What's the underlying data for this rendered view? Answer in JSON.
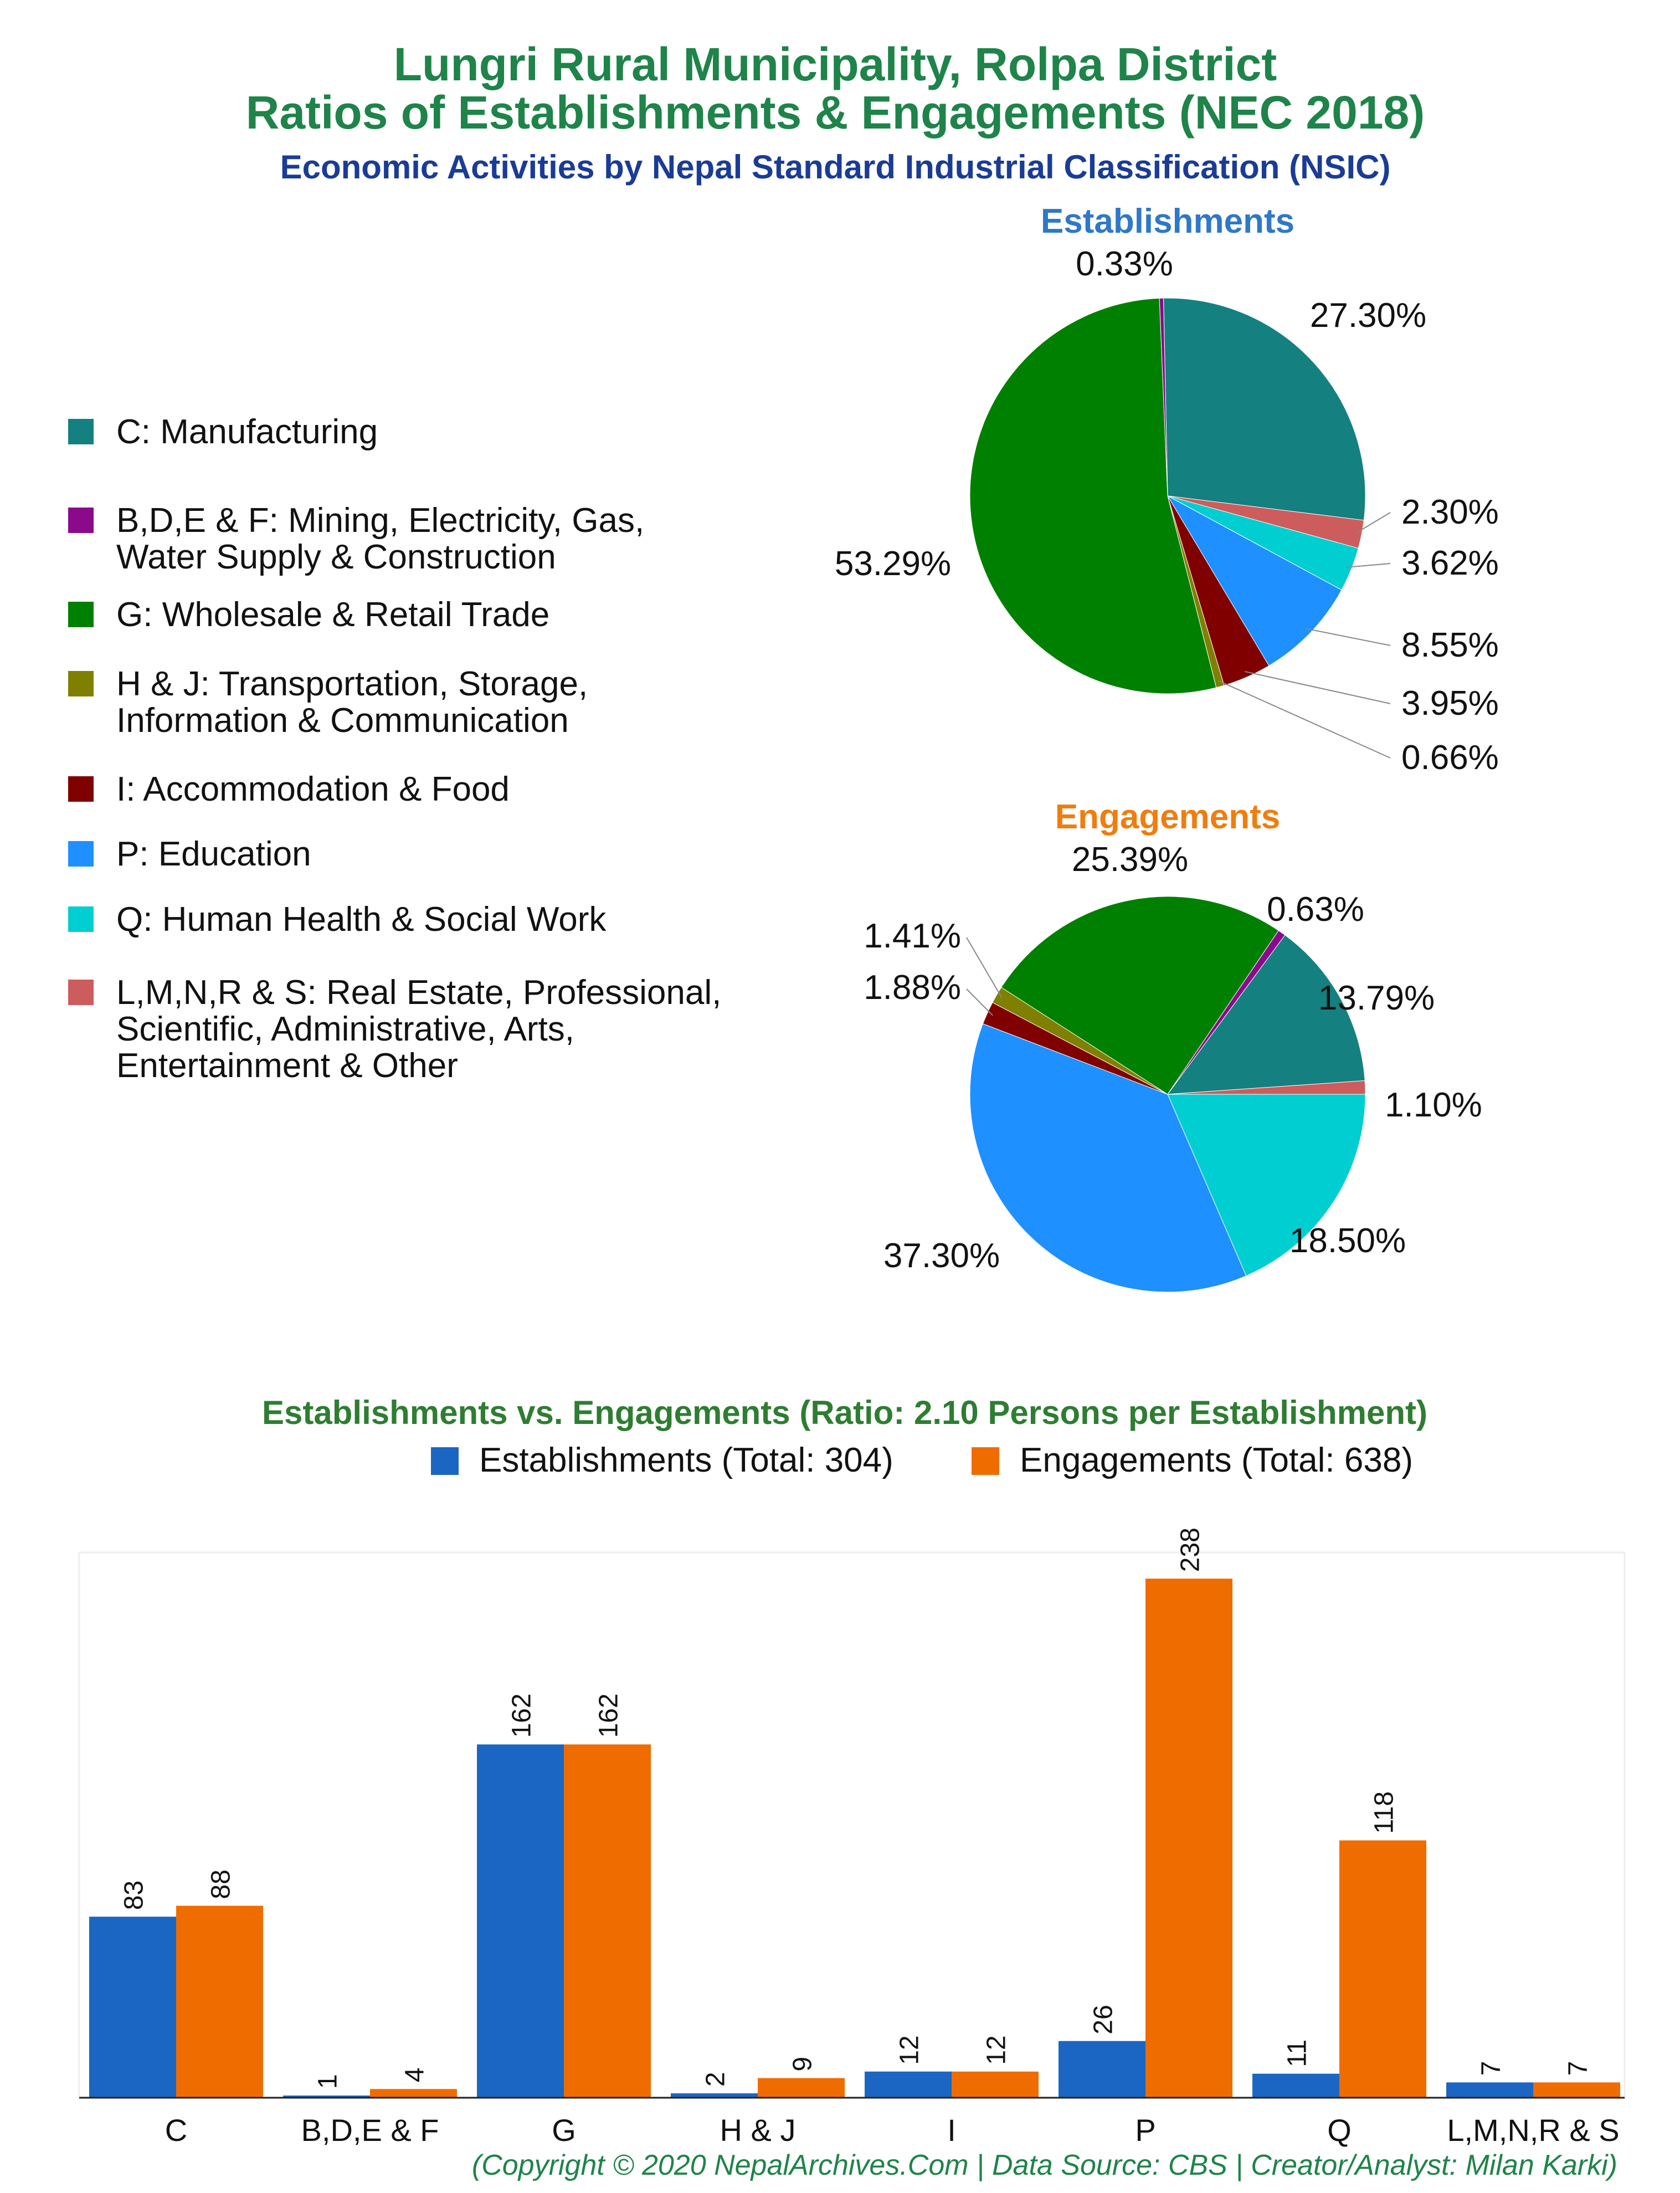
{
  "header": {
    "title_line1": "Lungri Rural Municipality, Rolpa District",
    "title_line2": "Ratios of Establishments & Engagements (NEC 2018)",
    "subtitle": "Economic Activities by Nepal Standard Industrial Classification (NSIC)"
  },
  "colors": {
    "title": "#1e8449",
    "subtitle": "#1a3c96",
    "establishments_title": "#2e78c8",
    "engagements_title": "#ef7d0f",
    "bar_establishments": "#1a66c2",
    "bar_engagements": "#ef6c00",
    "footer": "#1e8449"
  },
  "legend": {
    "items": [
      {
        "code": "C",
        "lines": [
          "C: Manufacturing"
        ],
        "color": "#148080"
      },
      {
        "code": "BDEF",
        "lines": [
          "B,D,E & F: Mining, Electricity, Gas,",
          "Water Supply & Construction"
        ],
        "color": "#8b0a8b"
      },
      {
        "code": "G",
        "lines": [
          "G: Wholesale & Retail Trade"
        ],
        "color": "#008000"
      },
      {
        "code": "HJ",
        "lines": [
          "H & J: Transportation, Storage,",
          "Information & Communication"
        ],
        "color": "#808000"
      },
      {
        "code": "I",
        "lines": [
          "I: Accommodation & Food"
        ],
        "color": "#800000"
      },
      {
        "code": "P",
        "lines": [
          "P: Education"
        ],
        "color": "#1e90ff"
      },
      {
        "code": "Q",
        "lines": [
          "Q: Human Health & Social Work"
        ],
        "color": "#00ced1"
      },
      {
        "code": "LMNRS",
        "lines": [
          "L,M,N,R & S: Real Estate, Professional,",
          "Scientific, Administrative, Arts,",
          "Entertainment & Other"
        ],
        "color": "#cd5c5c"
      }
    ]
  },
  "chart_data": [
    {
      "type": "pie",
      "title": "Establishments",
      "slices": [
        {
          "code": "C",
          "value": 27.3,
          "label": "27.30%"
        },
        {
          "code": "LMNRS",
          "value": 2.3,
          "label": "2.30%"
        },
        {
          "code": "Q",
          "value": 3.62,
          "label": "3.62%"
        },
        {
          "code": "P",
          "value": 8.55,
          "label": "8.55%"
        },
        {
          "code": "I",
          "value": 3.95,
          "label": "3.95%"
        },
        {
          "code": "HJ",
          "value": 0.66,
          "label": "0.66%"
        },
        {
          "code": "G",
          "value": 53.29,
          "label": "53.29%"
        },
        {
          "code": "BDEF",
          "value": 0.33,
          "label": "0.33%"
        }
      ]
    },
    {
      "type": "pie",
      "title": "Engagements",
      "slices": [
        {
          "code": "C",
          "value": 13.79,
          "label": "13.79%"
        },
        {
          "code": "LMNRS",
          "value": 1.1,
          "label": "1.10%"
        },
        {
          "code": "Q",
          "value": 18.5,
          "label": "18.50%"
        },
        {
          "code": "P",
          "value": 37.3,
          "label": "37.30%"
        },
        {
          "code": "I",
          "value": 1.88,
          "label": "1.88%"
        },
        {
          "code": "HJ",
          "value": 1.41,
          "label": "1.41%"
        },
        {
          "code": "G",
          "value": 25.39,
          "label": "25.39%"
        },
        {
          "code": "BDEF",
          "value": 0.63,
          "label": "0.63%"
        }
      ]
    },
    {
      "type": "bar",
      "title": "Establishments vs. Engagements (Ratio: 2.10 Persons per Establishment)",
      "categories": [
        "C",
        "B,D,E & F",
        "G",
        "H & J",
        "I",
        "P",
        "Q",
        "L,M,N,R & S"
      ],
      "series": [
        {
          "name": "Establishments (Total: 304)",
          "values": [
            83,
            1,
            162,
            2,
            12,
            26,
            11,
            7
          ]
        },
        {
          "name": "Engagements (Total: 638)",
          "values": [
            88,
            4,
            162,
            9,
            12,
            238,
            118,
            7
          ]
        }
      ],
      "ylim": [
        0,
        250
      ],
      "legend": "top",
      "grid": false
    }
  ],
  "footer": {
    "text": "(Copyright © 2020 NepalArchives.Com | Data Source: CBS | Creator/Analyst: Milan Karki)"
  }
}
